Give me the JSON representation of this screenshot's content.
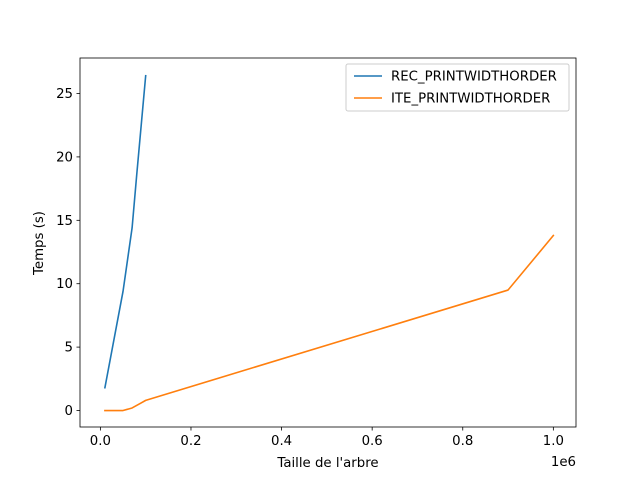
{
  "chart_data": {
    "type": "line",
    "title": "",
    "xlabel": "Taille de l'arbre",
    "ylabel": "Temps (s)",
    "x_offset_label": "1e6",
    "xlim": [
      -45000,
      1050000
    ],
    "ylim": [
      -1.3,
      27.8
    ],
    "xticks": [
      0,
      200000,
      400000,
      600000,
      800000,
      1000000
    ],
    "xtick_labels": [
      "0.0",
      "0.2",
      "0.4",
      "0.6",
      "0.8",
      "1.0"
    ],
    "yticks": [
      0,
      5,
      10,
      15,
      20,
      25
    ],
    "ytick_labels": [
      "0",
      "5",
      "10",
      "15",
      "20",
      "25"
    ],
    "grid": false,
    "legend_position": "top-right",
    "series": [
      {
        "name": "REC_PRINTWIDTHORDER",
        "color": "#1f77b4",
        "x": [
          10000,
          50000,
          70000,
          80000,
          100000
        ],
        "y": [
          1.8,
          9.4,
          14.4,
          18.5,
          26.4
        ]
      },
      {
        "name": "ITE_PRINTWIDTHORDER",
        "color": "#ff7f0e",
        "x": [
          10000,
          30000,
          50000,
          70000,
          90000,
          100000,
          900000,
          1000000
        ],
        "y": [
          0.0,
          0.0,
          0.0,
          0.2,
          0.6,
          0.8,
          9.5,
          13.8
        ]
      }
    ]
  }
}
